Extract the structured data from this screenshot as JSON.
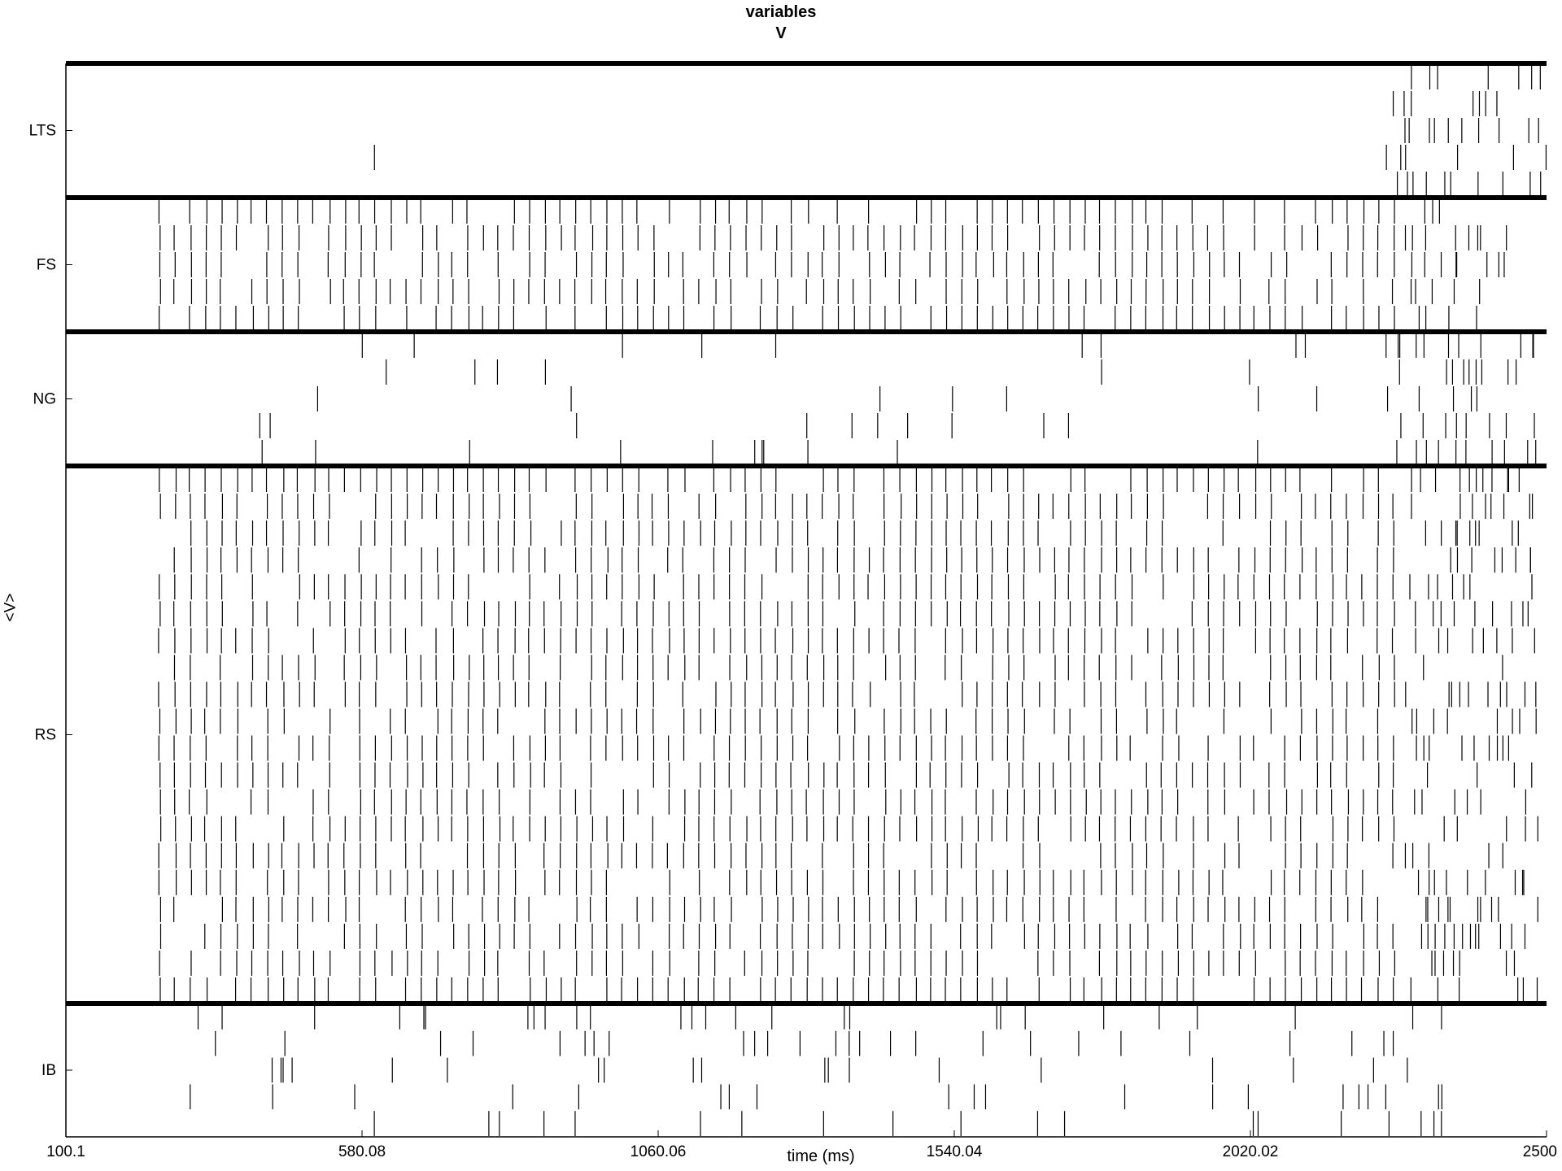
{
  "chart_data": {
    "type": "raster",
    "title_lines": [
      "variables",
      "V"
    ],
    "xlabel": "time (ms)",
    "ylabel": "<V>",
    "xlim": [
      100.1,
      2500
    ],
    "xticks": [
      "100.1",
      "580.08",
      "1060.06",
      "1540.04",
      "2020.02",
      "2500"
    ],
    "xtick_values": [
      100.1,
      580.08,
      1060.06,
      1540.04,
      2020.02,
      2500
    ],
    "populations": [
      {
        "name": "LTS",
        "cells": 5,
        "onset_ms": null,
        "rhythm_period_ms": null,
        "sparse_rate": 0.0008,
        "burst_window_ms": [
          2240,
          2500
        ]
      },
      {
        "name": "FS",
        "cells": 5,
        "onset_ms": 252,
        "rhythm_period_ms": 25,
        "sparse_rate": 0.0,
        "burst_window_ms": [
          2270,
          2450
        ]
      },
      {
        "name": "NG",
        "cells": 5,
        "onset_ms": 380,
        "rhythm_period_ms": null,
        "sparse_rate": 0.05,
        "burst_window_ms": [
          2250,
          2480
        ]
      },
      {
        "name": "RS",
        "cells": 20,
        "onset_ms": 252,
        "rhythm_period_ms": 25,
        "sparse_rate": 0.0,
        "burst_window_ms": [
          2270,
          2480
        ]
      },
      {
        "name": "IB",
        "cells": 5,
        "onset_ms": 252,
        "rhythm_period_ms": null,
        "sparse_rate": 0.12,
        "burst_window_ms": [
          2280,
          2330
        ]
      }
    ],
    "colors": {
      "spike": "#000000",
      "separator": "#000000",
      "background": "#ffffff"
    },
    "grid": false,
    "legend": "none"
  }
}
